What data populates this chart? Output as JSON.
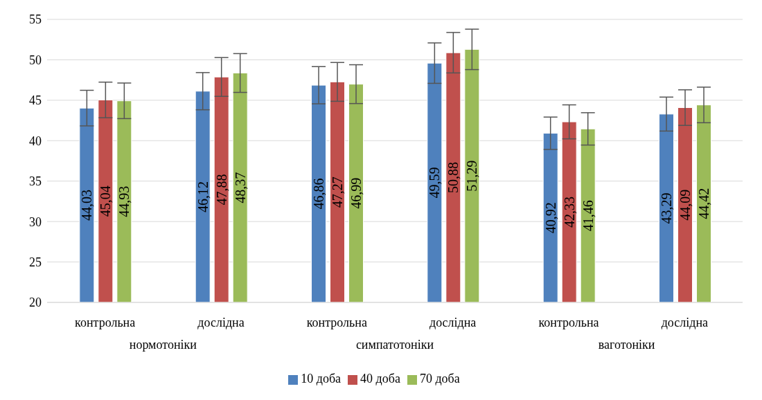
{
  "chart_data": {
    "type": "bar",
    "categories": [
      "контрольна",
      "дослідна",
      "контрольна",
      "дослідна",
      "контрольна",
      "дослідна"
    ],
    "annotations": [
      "нормотоніки",
      "симпатотоніки",
      "ваготоніки"
    ],
    "ylim": [
      20,
      55
    ],
    "yticks": [
      20,
      25,
      30,
      35,
      40,
      45,
      50,
      55
    ],
    "grid": "y",
    "legend": "bottom",
    "series": [
      {
        "name": "10 доба",
        "color": "#4f81bd",
        "values": [
          44.03,
          46.12,
          46.86,
          49.59,
          40.92,
          43.29
        ],
        "errors": [
          2.2,
          2.3,
          2.3,
          2.5,
          2.0,
          2.1
        ],
        "value_labels": [
          "44,03",
          "46,12",
          "46,86",
          "49,59",
          "40,92",
          "43,29"
        ]
      },
      {
        "name": "40 доба",
        "color": "#c0504d",
        "values": [
          45.04,
          47.88,
          47.27,
          50.88,
          42.33,
          44.09
        ],
        "errors": [
          2.2,
          2.4,
          2.4,
          2.5,
          2.1,
          2.2
        ],
        "value_labels": [
          "45,04",
          "47,88",
          "47,27",
          "50,88",
          "42,33",
          "44,09"
        ]
      },
      {
        "name": "70 доба",
        "color": "#9bbb59",
        "values": [
          44.93,
          48.37,
          46.99,
          51.29,
          41.46,
          44.42
        ],
        "errors": [
          2.2,
          2.4,
          2.4,
          2.5,
          2.0,
          2.2
        ],
        "value_labels": [
          "44,93",
          "48,37",
          "46,99",
          "51,29",
          "41,46",
          "44,42"
        ]
      }
    ]
  }
}
